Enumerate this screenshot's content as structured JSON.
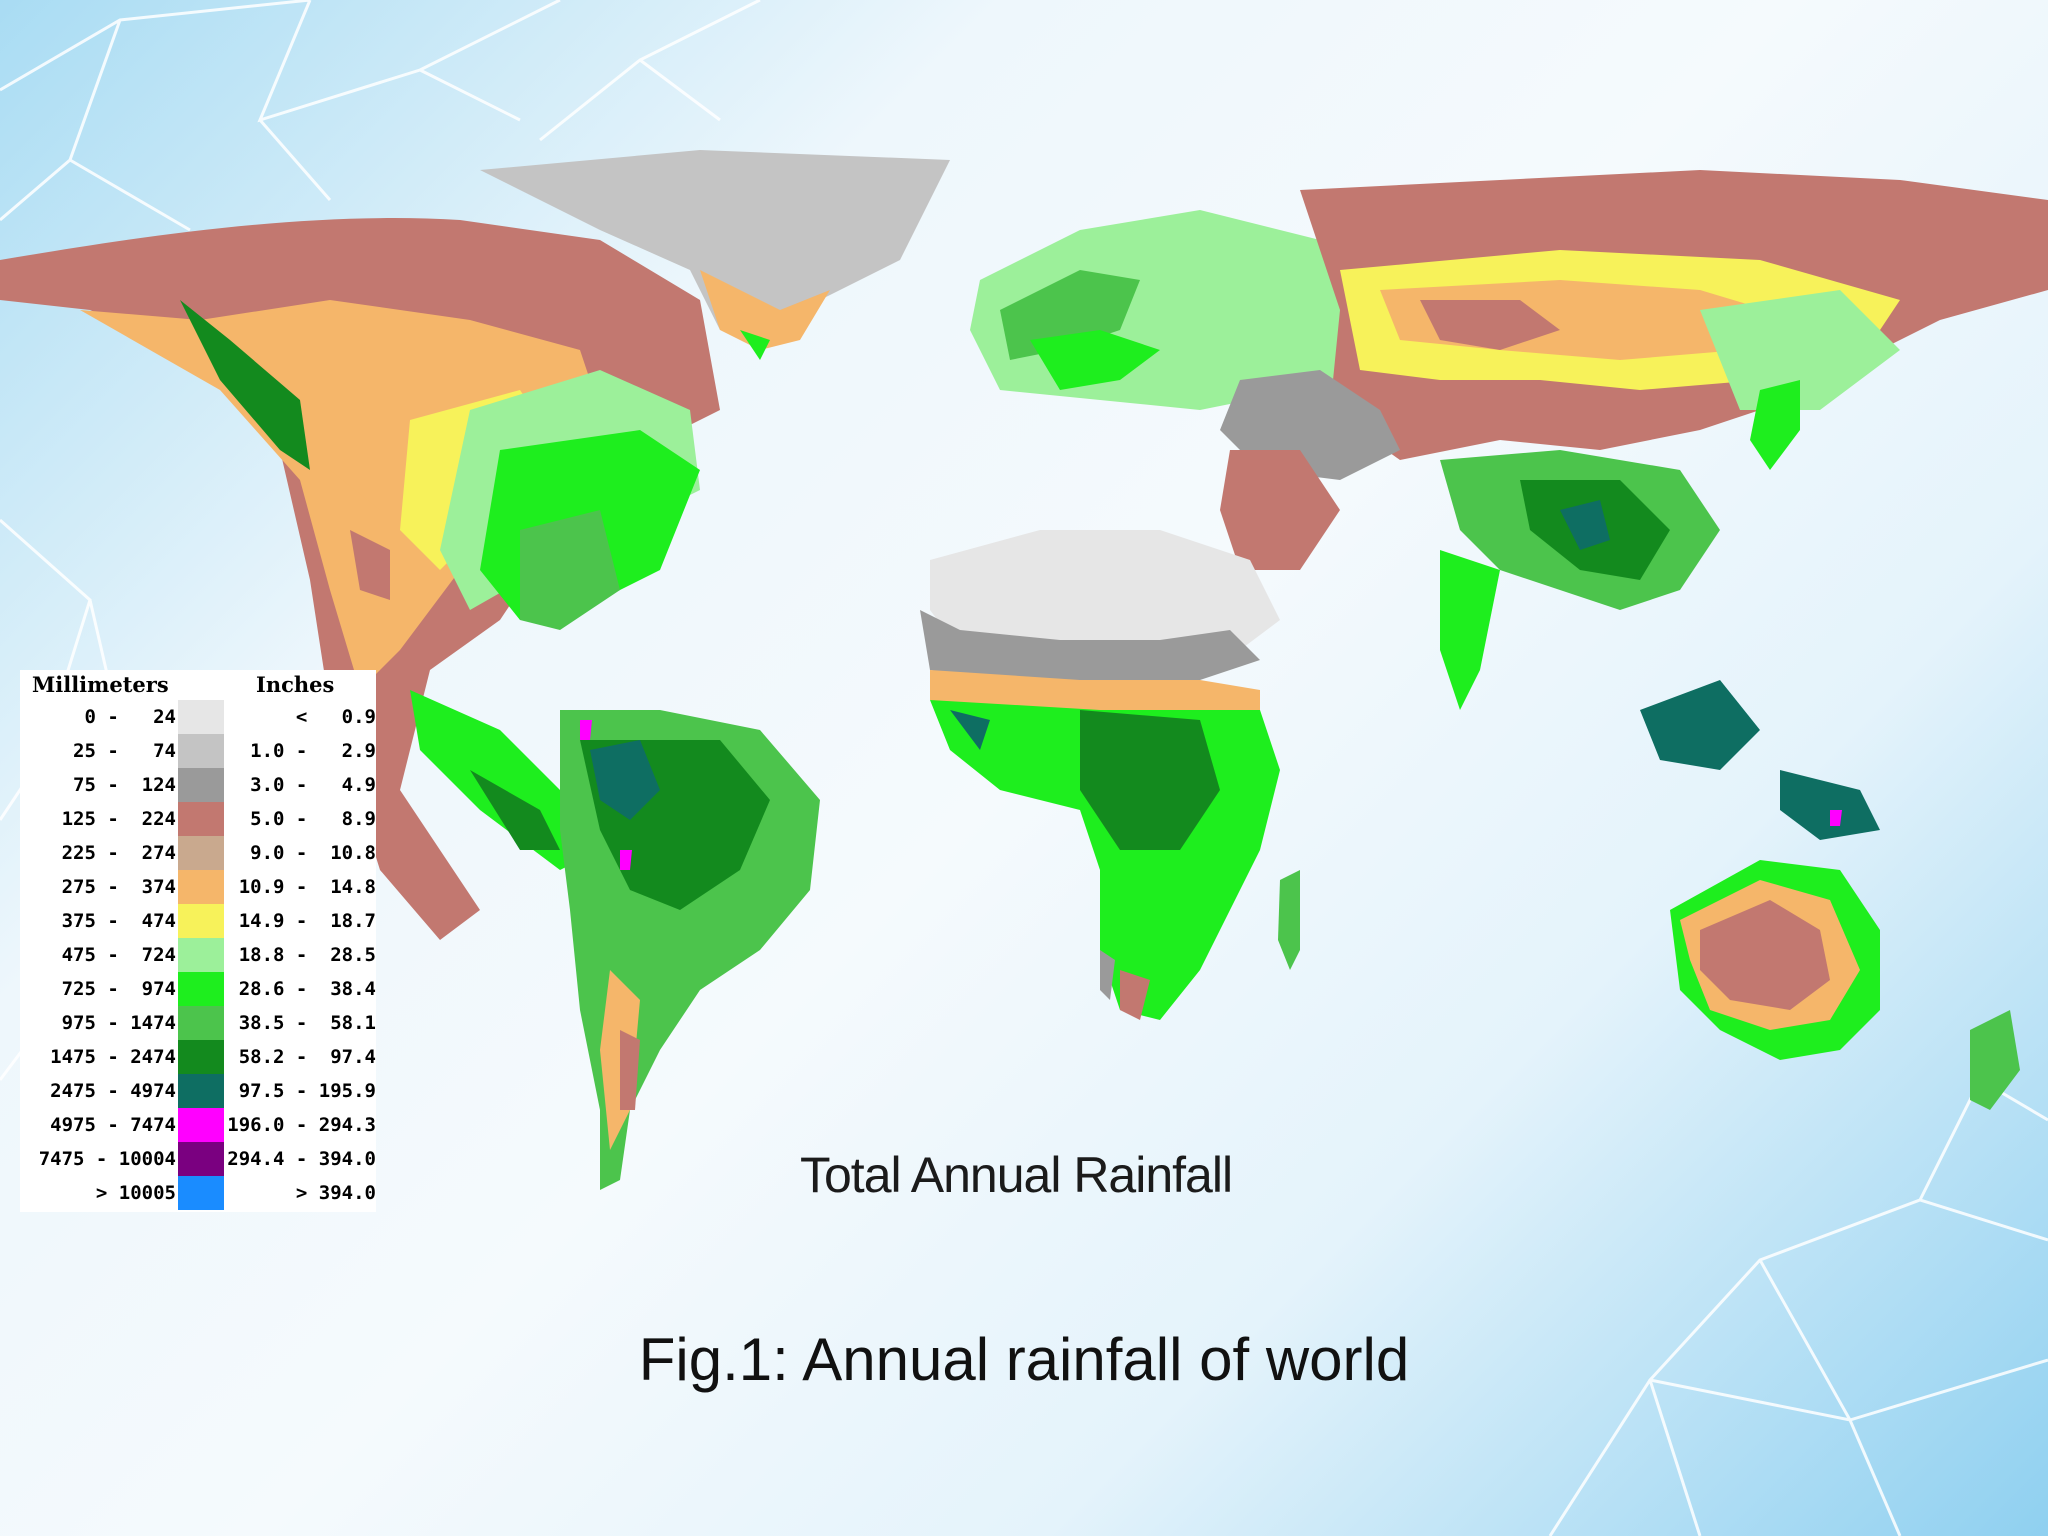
{
  "map_title": "Total Annual Rainfall",
  "caption": "Fig.1: Annual rainfall of world",
  "legend": {
    "mm_header": "Millimeters",
    "in_header": "Inches",
    "rows": [
      {
        "mm": "0 -   24",
        "in": "<   0.9",
        "color": "#e6e6e6"
      },
      {
        "mm": "25 -   74",
        "in": "1.0 -   2.9",
        "color": "#c4c4c4"
      },
      {
        "mm": "75 -  124",
        "in": "3.0 -   4.9",
        "color": "#9a9a9a"
      },
      {
        "mm": "125 -  224",
        "in": "5.0 -   8.9",
        "color": "#c27870"
      },
      {
        "mm": "225 -  274",
        "in": "9.0 -  10.8",
        "color": "#c9a98e"
      },
      {
        "mm": "275 -  374",
        "in": "10.9 -  14.8",
        "color": "#f5b66a"
      },
      {
        "mm": "375 -  474",
        "in": "14.9 -  18.7",
        "color": "#f7f25a"
      },
      {
        "mm": "475 -  724",
        "in": "18.8 -  28.5",
        "color": "#9cf09a"
      },
      {
        "mm": "725 -  974",
        "in": "28.6 -  38.4",
        "color": "#1eee1e"
      },
      {
        "mm": "975 - 1474",
        "in": "38.5 -  58.1",
        "color": "#4cc44c"
      },
      {
        "mm": "1475 - 2474",
        "in": "58.2 -  97.4",
        "color": "#138a1e"
      },
      {
        "mm": "2475 - 4974",
        "in": "97.5 - 195.9",
        "color": "#0e6e62"
      },
      {
        "mm": "4975 - 7474",
        "in": "196.0 - 294.3",
        "color": "#ff00ff"
      },
      {
        "mm": "7475 - 10004",
        "in": "294.4 - 394.0",
        "color": "#7a0080"
      },
      {
        "mm": "> 10005",
        "in": "> 394.0",
        "color": "#1a8cff"
      }
    ]
  }
}
